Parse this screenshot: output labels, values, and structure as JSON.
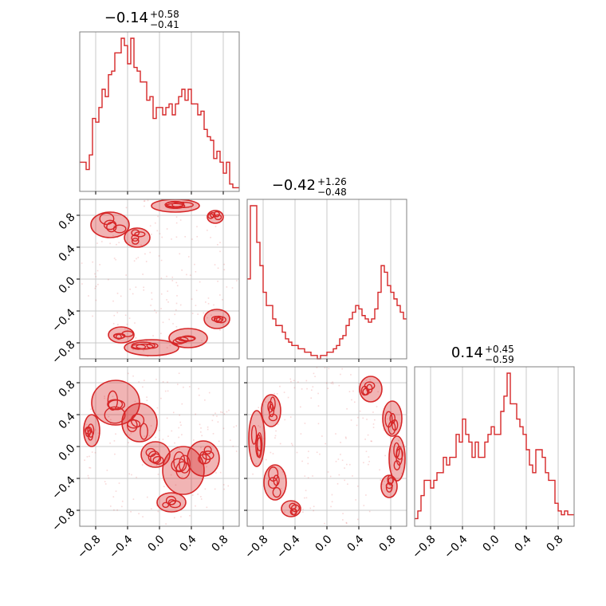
{
  "colors": {
    "series": "#d62728",
    "grid": "#c8c8c8",
    "axis": "#808080",
    "text": "#000000"
  },
  "tick_labels": [
    "−0.8",
    "−0.4",
    "0.0",
    "0.4",
    "0.8"
  ],
  "titles": {
    "p0": {
      "main": "−0.14",
      "sup": "+0.58",
      "sub": "−0.41"
    },
    "p1": {
      "main": "−0.42",
      "sup": "+1.26",
      "sub": "−0.48"
    },
    "p2": {
      "main": "0.14",
      "sup": "+0.45",
      "sub": "−0.59"
    }
  },
  "chart_data": [
    {
      "type": "histogram",
      "parameter_index": 0,
      "xlim": [
        -1,
        1
      ],
      "title": "−0.14 +0.58 −0.41",
      "bin_edges_start": -1.0,
      "bin_width": 0.04,
      "values": [
        8,
        8,
        6,
        10,
        20,
        19,
        23,
        28,
        26,
        32,
        33,
        38,
        38,
        42,
        40,
        35,
        42,
        34,
        33,
        30,
        30,
        25,
        26,
        20,
        23,
        23,
        21,
        23,
        24,
        21,
        24,
        26,
        28,
        25,
        28,
        24,
        24,
        21,
        22,
        17,
        15,
        14,
        9,
        11,
        8,
        5,
        8,
        2,
        1,
        1
      ]
    },
    {
      "type": "histogram",
      "parameter_index": 1,
      "xlim": [
        -1,
        1
      ],
      "title": "−0.42 +1.26 −0.48",
      "bin_edges_start": -1.0,
      "bin_width": 0.04,
      "values": [
        24,
        46,
        46,
        35,
        28,
        20,
        16,
        16,
        12,
        10,
        10,
        8,
        6,
        5,
        4,
        4,
        3,
        3,
        2,
        2,
        1,
        1,
        0,
        1,
        1,
        2,
        2,
        3,
        4,
        6,
        7,
        10,
        12,
        14,
        16,
        15,
        13,
        12,
        11,
        12,
        15,
        20,
        28,
        26,
        22,
        20,
        18,
        16,
        14,
        12
      ]
    },
    {
      "type": "histogram",
      "parameter_index": 2,
      "xlim": [
        -1,
        1
      ],
      "title": "0.14 +0.45 −0.59",
      "bin_edges_start": -1.0,
      "bin_width": 0.04,
      "values": [
        2,
        4,
        8,
        12,
        12,
        10,
        12,
        14,
        14,
        18,
        16,
        18,
        18,
        24,
        22,
        28,
        24,
        22,
        18,
        22,
        18,
        18,
        22,
        24,
        26,
        24,
        24,
        30,
        34,
        40,
        32,
        32,
        28,
        26,
        24,
        20,
        16,
        14,
        20,
        20,
        18,
        14,
        12,
        12,
        6,
        4,
        3,
        4,
        3,
        3
      ]
    },
    {
      "type": "contour",
      "pair": [
        0,
        1
      ],
      "xlim": [
        -1,
        1
      ],
      "ylim": [
        -1,
        1
      ],
      "blobs": [
        {
          "x": -0.62,
          "y": 0.68,
          "rx": 0.24,
          "ry": 0.16
        },
        {
          "x": -0.28,
          "y": 0.52,
          "rx": 0.16,
          "ry": 0.12
        },
        {
          "x": 0.2,
          "y": 0.92,
          "rx": 0.3,
          "ry": 0.08
        },
        {
          "x": 0.7,
          "y": 0.78,
          "rx": 0.1,
          "ry": 0.08
        },
        {
          "x": -0.1,
          "y": -0.86,
          "rx": 0.34,
          "ry": 0.1
        },
        {
          "x": -0.48,
          "y": -0.7,
          "rx": 0.16,
          "ry": 0.1
        },
        {
          "x": 0.36,
          "y": -0.74,
          "rx": 0.24,
          "ry": 0.12
        },
        {
          "x": 0.72,
          "y": -0.5,
          "rx": 0.16,
          "ry": 0.12
        }
      ]
    },
    {
      "type": "contour",
      "pair": [
        0,
        2
      ],
      "xlim": [
        -1,
        1
      ],
      "ylim": [
        -1,
        1
      ],
      "blobs": [
        {
          "x": -0.55,
          "y": 0.55,
          "rx": 0.3,
          "ry": 0.28
        },
        {
          "x": -0.25,
          "y": 0.3,
          "rx": 0.22,
          "ry": 0.24
        },
        {
          "x": -0.05,
          "y": -0.1,
          "rx": 0.18,
          "ry": 0.16
        },
        {
          "x": 0.3,
          "y": -0.3,
          "rx": 0.26,
          "ry": 0.3
        },
        {
          "x": 0.55,
          "y": -0.15,
          "rx": 0.2,
          "ry": 0.22
        },
        {
          "x": 0.15,
          "y": -0.7,
          "rx": 0.18,
          "ry": 0.12
        },
        {
          "x": -0.85,
          "y": 0.2,
          "rx": 0.1,
          "ry": 0.2
        }
      ]
    },
    {
      "type": "contour",
      "pair": [
        1,
        2
      ],
      "xlim": [
        -1,
        1
      ],
      "ylim": [
        -1,
        1
      ],
      "blobs": [
        {
          "x": -0.88,
          "y": 0.1,
          "rx": 0.1,
          "ry": 0.35
        },
        {
          "x": -0.7,
          "y": 0.45,
          "rx": 0.12,
          "ry": 0.2
        },
        {
          "x": -0.65,
          "y": -0.45,
          "rx": 0.14,
          "ry": 0.22
        },
        {
          "x": -0.45,
          "y": -0.78,
          "rx": 0.12,
          "ry": 0.1
        },
        {
          "x": 0.55,
          "y": 0.72,
          "rx": 0.14,
          "ry": 0.16
        },
        {
          "x": 0.82,
          "y": 0.35,
          "rx": 0.12,
          "ry": 0.22
        },
        {
          "x": 0.88,
          "y": -0.15,
          "rx": 0.1,
          "ry": 0.28
        },
        {
          "x": 0.78,
          "y": -0.5,
          "rx": 0.1,
          "ry": 0.14
        }
      ]
    }
  ]
}
